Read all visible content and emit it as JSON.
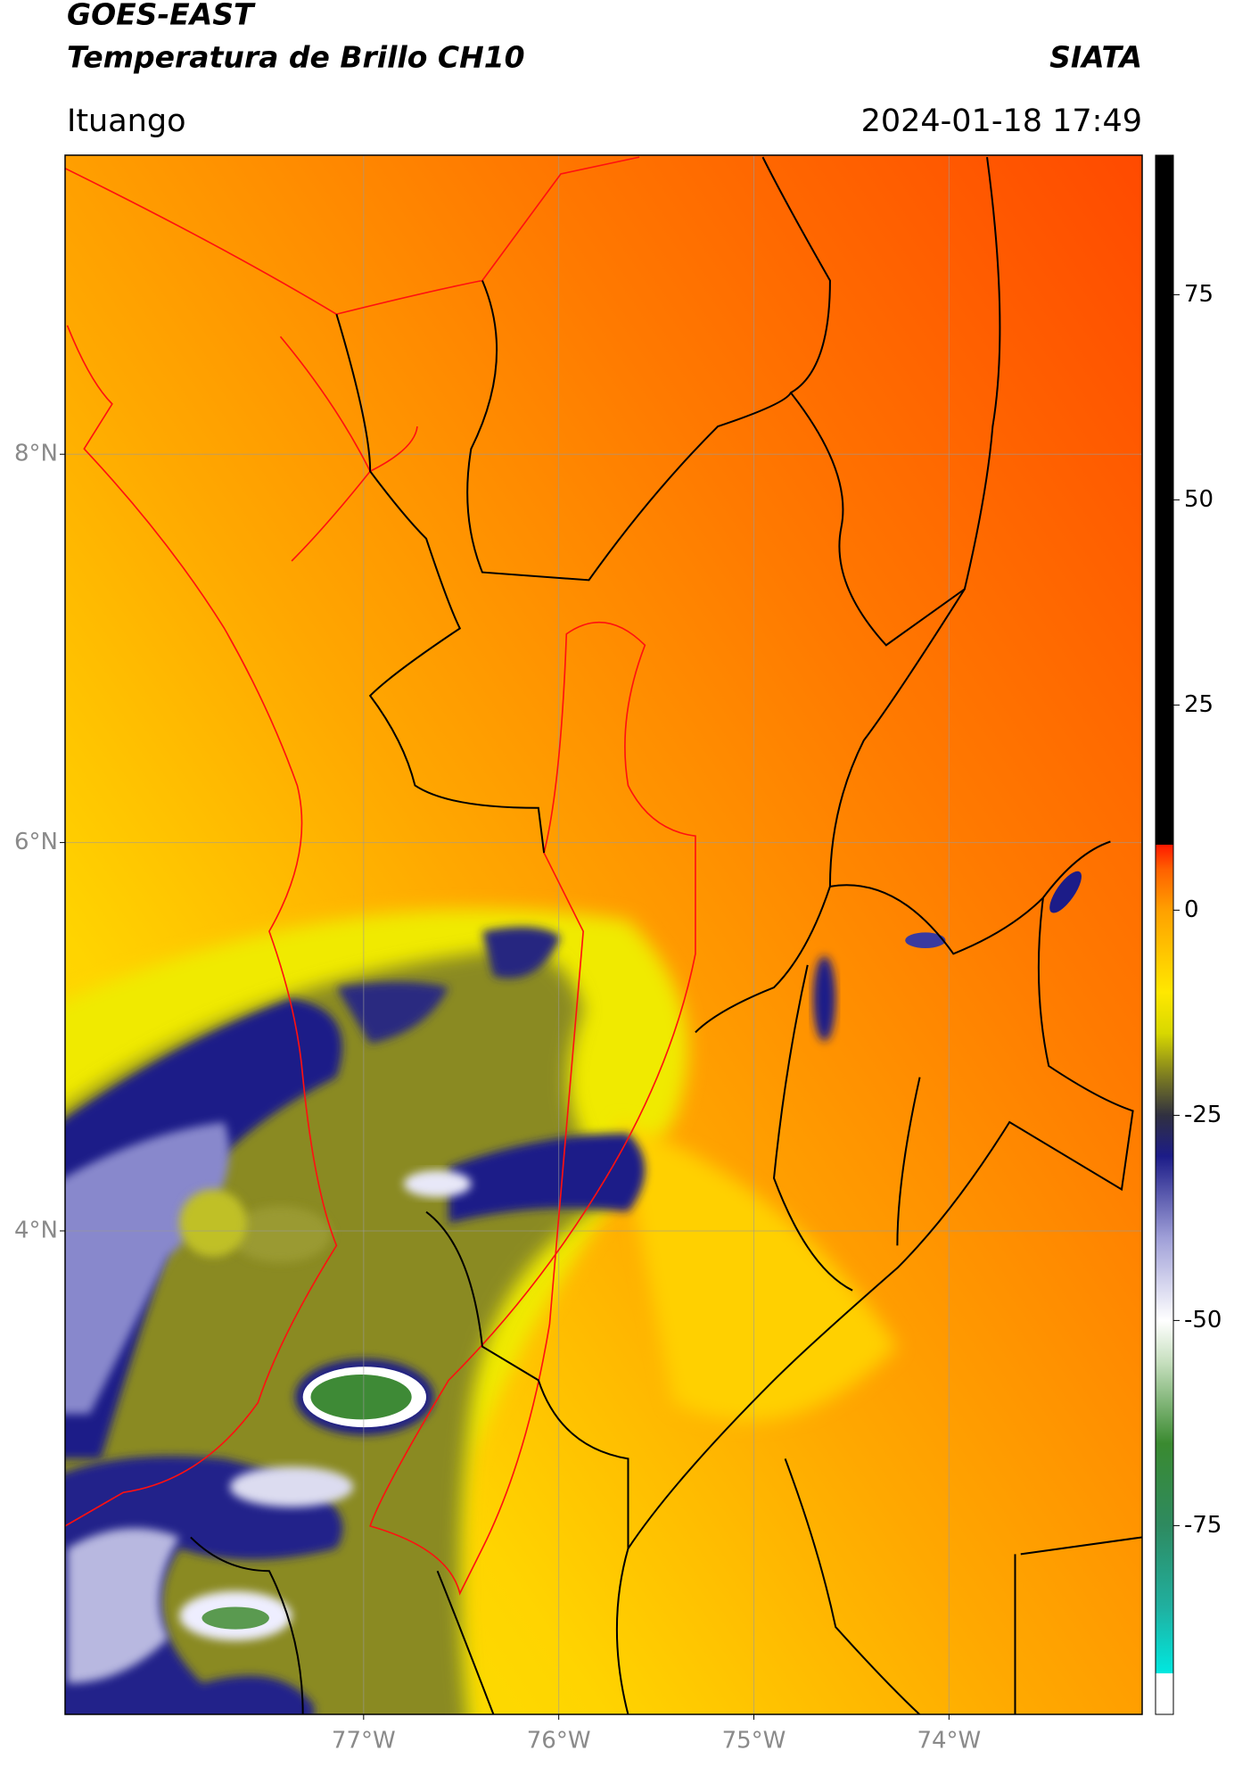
{
  "header": {
    "title": "GOES-EAST",
    "subtitle": "Temperatura de Brillo CH10",
    "source": "SIATA",
    "location": "Ituango",
    "datetime": "2024-01-18 17:49"
  },
  "map": {
    "xlim": [
      -78.53,
      -73.01
    ],
    "ylim": [
      1.51,
      9.54
    ],
    "xticks": [
      {
        "value": -77,
        "label": "77°W"
      },
      {
        "value": -76,
        "label": "76°W"
      },
      {
        "value": -75,
        "label": "75°W"
      },
      {
        "value": -74,
        "label": "74°W"
      }
    ],
    "yticks": [
      {
        "value": 8,
        "label": "8°N"
      },
      {
        "value": 6,
        "label": "6°N"
      },
      {
        "value": 4,
        "label": "4°N"
      }
    ],
    "grid": true
  },
  "colorbar": {
    "lim": [
      -98,
      92
    ],
    "ticks": [
      -75,
      -50,
      -25,
      0,
      25,
      50,
      75
    ],
    "colormap": [
      {
        "value": -98,
        "color": "#ffffff"
      },
      {
        "value": -93,
        "color": "#ffffff"
      },
      {
        "value": -93,
        "color": "#00e8e0"
      },
      {
        "value": -85,
        "color": "#20b0a0"
      },
      {
        "value": -75,
        "color": "#2e8a60"
      },
      {
        "value": -65,
        "color": "#3a8a30"
      },
      {
        "value": -55,
        "color": "#c8e0c0"
      },
      {
        "value": -50,
        "color": "#ffffff"
      },
      {
        "value": -40,
        "color": "#a0a0d8"
      },
      {
        "value": -30,
        "color": "#1c1c88"
      },
      {
        "value": -25,
        "color": "#303040"
      },
      {
        "value": -20,
        "color": "#808020"
      },
      {
        "value": -15,
        "color": "#d8d800"
      },
      {
        "value": -10,
        "color": "#ffe800"
      },
      {
        "value": 0,
        "color": "#ffa000"
      },
      {
        "value": 5,
        "color": "#ff6000"
      },
      {
        "value": 8,
        "color": "#ff1800"
      },
      {
        "value": 8,
        "color": "#000000"
      },
      {
        "value": 92,
        "color": "#000000"
      }
    ]
  }
}
